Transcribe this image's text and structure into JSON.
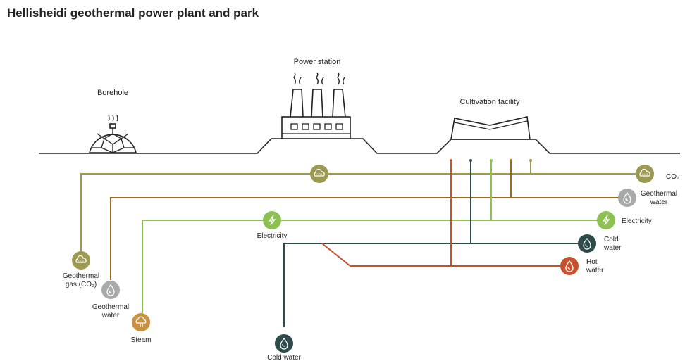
{
  "title": "Hellisheidi geothermal power plant and park",
  "structures": {
    "borehole": "Borehole",
    "power_station": "Power station",
    "cultivation": "Cultivation facility"
  },
  "outputs": {
    "co2": [
      "CO₂"
    ],
    "geothermal_water": [
      "Geothermal",
      "water"
    ],
    "electricity": [
      "Electricity"
    ],
    "cold_water": [
      "Cold",
      "water"
    ],
    "hot_water": [
      "Hot",
      "water"
    ]
  },
  "inputs": {
    "geothermal_gas": [
      "Geothermal",
      "gas (CO₂)"
    ],
    "geothermal_water": [
      "Geothermal",
      "water"
    ],
    "steam": [
      "Steam"
    ],
    "electricity": [
      "Electricity"
    ],
    "cold_water": [
      "Cold water"
    ]
  }
}
